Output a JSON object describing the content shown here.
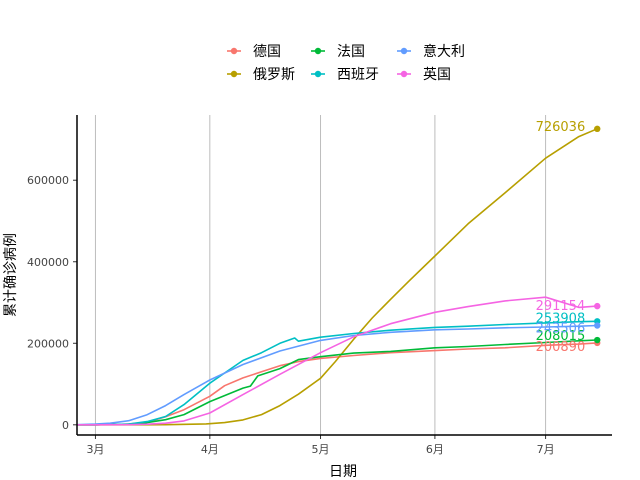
{
  "chart_data": {
    "type": "line",
    "title": "",
    "xlabel": "日期",
    "ylabel": "累计确诊病例",
    "x_ticks": [
      "3月",
      "4月",
      "5月",
      "6月",
      "7月"
    ],
    "x_tick_dates": [
      "2020-03-01",
      "2020-04-01",
      "2020-05-01",
      "2020-06-01",
      "2020-07-01"
    ],
    "x_range": [
      "2020-02-25",
      "2020-07-19"
    ],
    "y_ticks": [
      0,
      200000,
      400000,
      600000
    ],
    "y_tick_labels": [
      "0",
      "200000",
      "400000",
      "600000"
    ],
    "ylim": [
      -25000,
      760000
    ],
    "grid": "vertical-major",
    "legend_position": "top",
    "series": [
      {
        "name": "德国",
        "color": "#F8766D",
        "end_label": "200890",
        "points": [
          [
            "2020-02-25",
            16
          ],
          [
            "2020-03-01",
            130
          ],
          [
            "2020-03-10",
            1500
          ],
          [
            "2020-03-15",
            5800
          ],
          [
            "2020-03-20",
            20000
          ],
          [
            "2020-03-25",
            37000
          ],
          [
            "2020-04-01",
            70000
          ],
          [
            "2020-04-05",
            96000
          ],
          [
            "2020-04-10",
            115000
          ],
          [
            "2020-04-15",
            130000
          ],
          [
            "2020-04-20",
            145000
          ],
          [
            "2020-04-25",
            155000
          ],
          [
            "2020-05-01",
            163000
          ],
          [
            "2020-05-10",
            170000
          ],
          [
            "2020-05-20",
            177000
          ],
          [
            "2020-06-01",
            182000
          ],
          [
            "2020-06-10",
            186000
          ],
          [
            "2020-06-20",
            189000
          ],
          [
            "2020-07-01",
            195000
          ],
          [
            "2020-07-10",
            198000
          ],
          [
            "2020-07-15",
            200890
          ]
        ]
      },
      {
        "name": "俄罗斯",
        "color": "#B79F00",
        "end_label": "726036",
        "points": [
          [
            "2020-02-25",
            2
          ],
          [
            "2020-03-10",
            20
          ],
          [
            "2020-03-20",
            250
          ],
          [
            "2020-03-31",
            2300
          ],
          [
            "2020-04-05",
            5400
          ],
          [
            "2020-04-10",
            12000
          ],
          [
            "2020-04-15",
            25000
          ],
          [
            "2020-04-20",
            47000
          ],
          [
            "2020-04-25",
            75000
          ],
          [
            "2020-05-01",
            114000
          ],
          [
            "2020-05-05",
            155000
          ],
          [
            "2020-05-10",
            210000
          ],
          [
            "2020-05-15",
            262000
          ],
          [
            "2020-05-20",
            308000
          ],
          [
            "2020-05-25",
            353000
          ],
          [
            "2020-06-01",
            414000
          ],
          [
            "2020-06-10",
            493000
          ],
          [
            "2020-06-20",
            569000
          ],
          [
            "2020-07-01",
            654000
          ],
          [
            "2020-07-10",
            707000
          ],
          [
            "2020-07-15",
            726036
          ]
        ]
      },
      {
        "name": "法国",
        "color": "#00BA38",
        "end_label": "208015",
        "points": [
          [
            "2020-02-25",
            14
          ],
          [
            "2020-03-01",
            130
          ],
          [
            "2020-03-10",
            1800
          ],
          [
            "2020-03-15",
            5400
          ],
          [
            "2020-03-20",
            12600
          ],
          [
            "2020-03-25",
            25000
          ],
          [
            "2020-04-01",
            57000
          ],
          [
            "2020-04-10",
            90000
          ],
          [
            "2020-04-12",
            95000
          ],
          [
            "2020-04-14",
            120000
          ],
          [
            "2020-04-20",
            138000
          ],
          [
            "2020-04-25",
            160000
          ],
          [
            "2020-05-01",
            167000
          ],
          [
            "2020-05-10",
            176000
          ],
          [
            "2020-05-20",
            180000
          ],
          [
            "2020-06-01",
            189000
          ],
          [
            "2020-06-10",
            192000
          ],
          [
            "2020-06-20",
            197000
          ],
          [
            "2020-07-01",
            202000
          ],
          [
            "2020-07-10",
            206000
          ],
          [
            "2020-07-15",
            208015
          ]
        ]
      },
      {
        "name": "西班牙",
        "color": "#00BFC4",
        "end_label": "253908",
        "points": [
          [
            "2020-02-25",
            6
          ],
          [
            "2020-03-01",
            84
          ],
          [
            "2020-03-10",
            1700
          ],
          [
            "2020-03-15",
            7800
          ],
          [
            "2020-03-20",
            20400
          ],
          [
            "2020-03-25",
            49500
          ],
          [
            "2020-04-01",
            102000
          ],
          [
            "2020-04-10",
            158000
          ],
          [
            "2020-04-15",
            177000
          ],
          [
            "2020-04-20",
            200000
          ],
          [
            "2020-04-24",
            213000
          ],
          [
            "2020-04-25",
            205000
          ],
          [
            "2020-05-01",
            215000
          ],
          [
            "2020-05-10",
            224000
          ],
          [
            "2020-05-20",
            232000
          ],
          [
            "2020-06-01",
            239000
          ],
          [
            "2020-06-10",
            242000
          ],
          [
            "2020-06-20",
            246000
          ],
          [
            "2020-07-01",
            250000
          ],
          [
            "2020-07-10",
            253000
          ],
          [
            "2020-07-15",
            253908
          ]
        ]
      },
      {
        "name": "意大利",
        "color": "#619CFF",
        "end_label": "243506",
        "points": [
          [
            "2020-02-25",
            320
          ],
          [
            "2020-03-01",
            1700
          ],
          [
            "2020-03-05",
            3900
          ],
          [
            "2020-03-10",
            10000
          ],
          [
            "2020-03-15",
            24700
          ],
          [
            "2020-03-20",
            47000
          ],
          [
            "2020-03-25",
            74000
          ],
          [
            "2020-04-01",
            110000
          ],
          [
            "2020-04-10",
            148000
          ],
          [
            "2020-04-20",
            181000
          ],
          [
            "2020-05-01",
            207000
          ],
          [
            "2020-05-10",
            219000
          ],
          [
            "2020-05-20",
            227000
          ],
          [
            "2020-06-01",
            233000
          ],
          [
            "2020-06-10",
            235000
          ],
          [
            "2020-06-20",
            238000
          ],
          [
            "2020-07-01",
            240000
          ],
          [
            "2020-07-10",
            242000
          ],
          [
            "2020-07-15",
            243506
          ]
        ]
      },
      {
        "name": "英国",
        "color": "#F564E3",
        "end_label": "291154",
        "points": [
          [
            "2020-02-25",
            13
          ],
          [
            "2020-03-01",
            36
          ],
          [
            "2020-03-10",
            380
          ],
          [
            "2020-03-15",
            1400
          ],
          [
            "2020-03-20",
            4000
          ],
          [
            "2020-03-25",
            9500
          ],
          [
            "2020-04-01",
            29000
          ],
          [
            "2020-04-10",
            74000
          ],
          [
            "2020-04-20",
            124000
          ],
          [
            "2020-05-01",
            177000
          ],
          [
            "2020-05-10",
            216000
          ],
          [
            "2020-05-20",
            248000
          ],
          [
            "2020-06-01",
            276000
          ],
          [
            "2020-06-10",
            290000
          ],
          [
            "2020-06-20",
            304000
          ],
          [
            "2020-07-01",
            313000
          ],
          [
            "2020-07-10",
            288000
          ],
          [
            "2020-07-15",
            291154
          ]
        ]
      }
    ]
  }
}
